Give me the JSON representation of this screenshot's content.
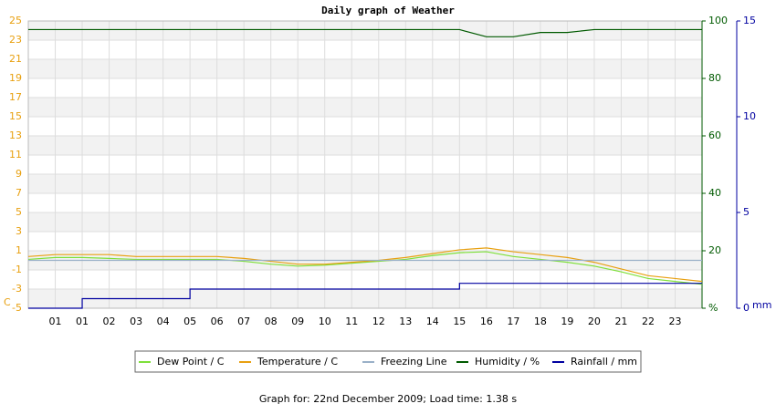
{
  "chart_data": {
    "type": "line",
    "title": "Daily graph of Weather",
    "footer": "Graph for: 22nd December 2009; Load time: 1.38 s",
    "ylabel": "C",
    "y2label": "%",
    "y3label": "mm",
    "x": [
      0,
      1,
      2,
      3,
      4,
      5,
      6,
      7,
      8,
      9,
      10,
      11,
      12,
      13,
      14,
      15,
      16,
      17,
      18,
      19,
      20,
      21,
      22,
      23,
      24,
      25
    ],
    "xlim": [
      0,
      25
    ],
    "xticks": [
      {
        "value": 1,
        "label": "01"
      },
      {
        "value": 2,
        "label": "01"
      },
      {
        "value": 3,
        "label": "02"
      },
      {
        "value": 4,
        "label": "03"
      },
      {
        "value": 5,
        "label": "04"
      },
      {
        "value": 6,
        "label": "05"
      },
      {
        "value": 7,
        "label": "06"
      },
      {
        "value": 8,
        "label": "07"
      },
      {
        "value": 9,
        "label": "08"
      },
      {
        "value": 10,
        "label": "09"
      },
      {
        "value": 11,
        "label": "10"
      },
      {
        "value": 12,
        "label": "11"
      },
      {
        "value": 13,
        "label": "12"
      },
      {
        "value": 14,
        "label": "13"
      },
      {
        "value": 15,
        "label": "14"
      },
      {
        "value": 16,
        "label": "15"
      },
      {
        "value": 17,
        "label": "16"
      },
      {
        "value": 18,
        "label": "17"
      },
      {
        "value": 19,
        "label": "18"
      },
      {
        "value": 20,
        "label": "19"
      },
      {
        "value": 21,
        "label": "20"
      },
      {
        "value": 22,
        "label": "21"
      },
      {
        "value": 23,
        "label": "22"
      },
      {
        "value": 24,
        "label": "23"
      }
    ],
    "ylim": [
      -5,
      25
    ],
    "yticks": [
      25,
      23,
      21,
      19,
      17,
      15,
      13,
      11,
      9,
      7,
      5,
      3,
      1,
      -1,
      -3,
      -5
    ],
    "y2lim": [
      0,
      100
    ],
    "y2ticks": [
      {
        "value": 0,
        "label": "%"
      },
      20,
      40,
      60,
      80,
      100
    ],
    "y3lim": [
      0,
      15
    ],
    "y3ticks": [
      0,
      5,
      10,
      15
    ],
    "series": [
      {
        "name": "Dew Point / C",
        "color": "#7ee03a",
        "values": [
          0.1,
          0.3,
          0.3,
          0.2,
          0.1,
          0.1,
          0.1,
          0.1,
          -0.1,
          -0.4,
          -0.6,
          -0.5,
          -0.3,
          -0.1,
          0.1,
          0.5,
          0.8,
          0.9,
          0.4,
          0.1,
          -0.2,
          -0.6,
          -1.2,
          -1.9,
          -2.2,
          -2.5
        ]
      },
      {
        "name": "Temperature / C",
        "color": "#e8a010",
        "values": [
          0.4,
          0.6,
          0.6,
          0.6,
          0.4,
          0.4,
          0.4,
          0.4,
          0.2,
          -0.1,
          -0.4,
          -0.4,
          -0.2,
          0.0,
          0.3,
          0.7,
          1.1,
          1.3,
          0.9,
          0.6,
          0.3,
          -0.2,
          -0.9,
          -1.6,
          -1.9,
          -2.2
        ]
      },
      {
        "name": "Freezing Line",
        "color": "#9ab0c8",
        "values": [
          0,
          0,
          0,
          0,
          0,
          0,
          0,
          0,
          0,
          0,
          0,
          0,
          0,
          0,
          0,
          0,
          0,
          0,
          0,
          0,
          0,
          0,
          0,
          0,
          0,
          0
        ]
      },
      {
        "name": "Humidity / %",
        "color": "#005a00",
        "axis": "y2",
        "values": [
          97,
          97,
          97,
          97,
          97,
          97,
          97,
          97,
          97,
          97,
          97,
          97,
          97,
          97,
          97,
          97,
          97,
          94.5,
          94.5,
          96,
          96,
          97,
          97,
          97,
          97,
          97
        ]
      },
      {
        "name": "Rainfall / mm",
        "color": "#0000a0",
        "axis": "y3",
        "step": true,
        "values": [
          0,
          0,
          0.5,
          0.5,
          0.5,
          0.5,
          1,
          1,
          1,
          1,
          1,
          1,
          1,
          1,
          1,
          1,
          1.3,
          1.3,
          1.3,
          1.3,
          1.3,
          1.3,
          1.3,
          1.3,
          1.3,
          1.3
        ]
      }
    ]
  }
}
